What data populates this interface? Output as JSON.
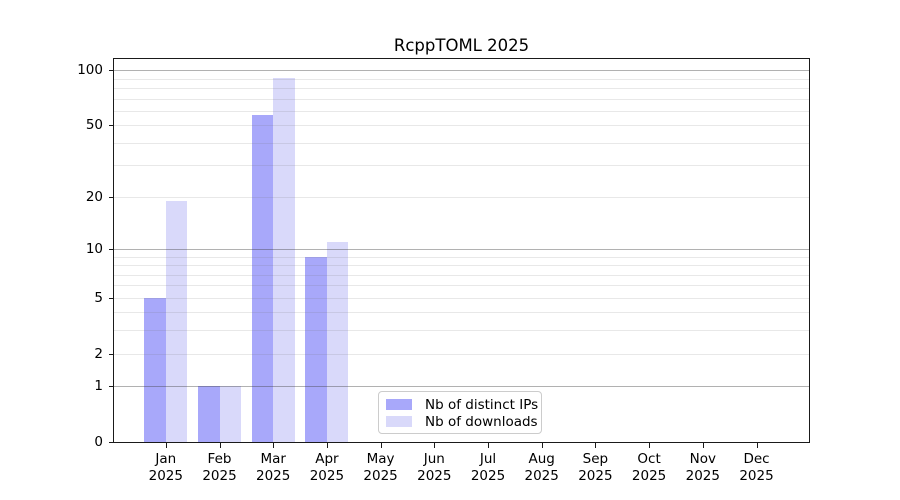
{
  "chart_data": {
    "type": "bar",
    "title": "RcppTOML 2025",
    "categories": [
      "Jan",
      "Feb",
      "Mar",
      "Apr",
      "May",
      "Jun",
      "Jul",
      "Aug",
      "Sep",
      "Oct",
      "Nov",
      "Dec"
    ],
    "category_year": "2025",
    "series": [
      {
        "name": "Nb of distinct IPs",
        "color": "#a8a8fa",
        "values": [
          5,
          1,
          57,
          9,
          0,
          0,
          0,
          0,
          0,
          0,
          0,
          0
        ]
      },
      {
        "name": "Nb of downloads",
        "color": "#d9d9fa",
        "values": [
          19,
          1,
          91,
          11,
          0,
          0,
          0,
          0,
          0,
          0,
          0,
          0
        ]
      }
    ],
    "yscale": "log1p",
    "ylim": [
      0,
      115
    ],
    "yticks": [
      0,
      1,
      2,
      5,
      10,
      20,
      50,
      100
    ],
    "major_gridlines": [
      1,
      10,
      100
    ],
    "minor_gridlines": [
      2,
      3,
      4,
      5,
      6,
      7,
      8,
      9,
      20,
      30,
      40,
      50,
      60,
      70,
      80,
      90
    ],
    "grid": true,
    "legend_position": "bottom-center"
  },
  "colors": {
    "bar_distinct_ips": "#a8a8fa",
    "bar_downloads": "#d9d9fa",
    "grid_major": "#b0b0b0",
    "grid_minor": "#e9e9e9",
    "axis_frame": "#1a1a1a",
    "background": "#ffffff"
  }
}
